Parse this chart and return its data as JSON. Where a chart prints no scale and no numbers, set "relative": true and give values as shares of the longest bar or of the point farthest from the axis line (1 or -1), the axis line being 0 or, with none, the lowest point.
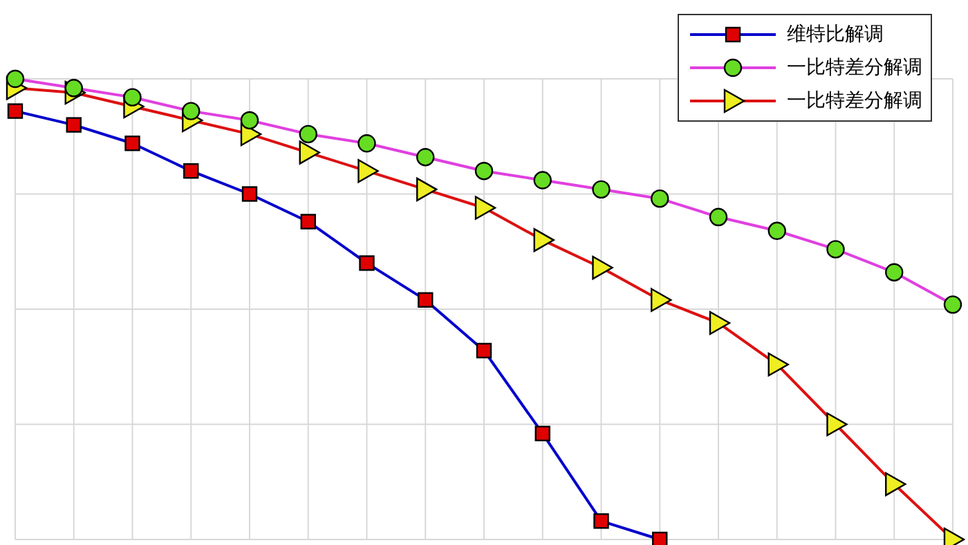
{
  "chart_data": {
    "type": "line",
    "relative": true,
    "grid": true,
    "legend": "top right",
    "categories": [
      null,
      null,
      null,
      null,
      null,
      null,
      null,
      null,
      null,
      null,
      null,
      null,
      null,
      null,
      null,
      null,
      null
    ],
    "series": [
      {
        "name": "维特比解调",
        "color": "#0000cc",
        "marker": "square",
        "colors": [
          "#e00000",
          "#e00000",
          "#e00000",
          "#e00000",
          "#e00000",
          "#e00000",
          "#e00000",
          "#e00000",
          "#e00000",
          "#e00000",
          "#e00000",
          "#e00000",
          null,
          null,
          null,
          null,
          null
        ],
        "values": [
          0.93,
          0.9,
          0.86,
          0.8,
          0.75,
          0.69,
          0.6,
          0.52,
          0.41,
          0.23,
          0.04,
          0,
          null,
          null,
          null,
          null,
          null
        ]
      },
      {
        "name": "一比特差分解调",
        "color": "#e040e0",
        "marker": "circle",
        "colors": [
          "#66dd22",
          "#66dd22",
          "#66dd22",
          "#66dd22",
          "#66dd22",
          "#66dd22",
          "#66dd22",
          "#66dd22",
          "#66dd22",
          "#66dd22",
          "#66dd22",
          "#66dd22",
          "#66dd22",
          "#66dd22",
          "#66dd22",
          "#66dd22",
          "#66dd22"
        ],
        "values": [
          1,
          0.98,
          0.96,
          0.93,
          0.91,
          0.88,
          0.86,
          0.83,
          0.8,
          0.78,
          0.76,
          0.74,
          0.7,
          0.67,
          0.63,
          0.58,
          0.51
        ]
      },
      {
        "name": "一比特差分解调",
        "color": "#dd1111",
        "marker": "triangle",
        "colors": [
          "#eeee22",
          "#eeee22",
          "#eeee22",
          "#eeee22",
          "#eeee22",
          "#eeee22",
          "#eeee22",
          "#eeee22",
          "#eeee22",
          "#eeee22",
          "#eeee22",
          "#eeee22",
          "#eeee22",
          "#eeee22",
          "#eeee22",
          "#eeee22",
          "#eeee22"
        ],
        "values": [
          0.98,
          0.97,
          0.94,
          0.91,
          0.88,
          0.84,
          0.8,
          0.76,
          0.72,
          0.65,
          0.59,
          0.52,
          0.47,
          0.38,
          0.25,
          0.12,
          0
        ]
      }
    ]
  }
}
